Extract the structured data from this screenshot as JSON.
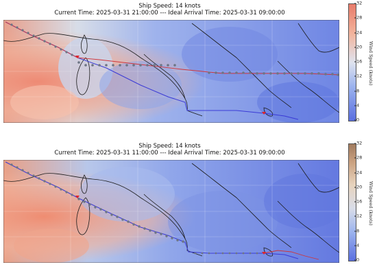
{
  "panels": [
    {
      "title_line1": "Ship Speed: 14 knots",
      "title_line2": "Current Time: 2025-03-31 21:00:00 --- Ideal Arrival Time: 2025-03-31 09:00:00",
      "colorbar": {
        "label": "Wind Speed (knots)",
        "ticks": [
          "0",
          "4",
          "8",
          "12",
          "16",
          "20",
          "24",
          "28",
          "32"
        ],
        "colormap": "coolwarm",
        "colors": [
          "#5a6fe0",
          "#9db4ee",
          "#dfe3ee",
          "#f2b39b",
          "#e87b6a"
        ]
      }
    },
    {
      "title_line1": "Ship Speed: 14 knots",
      "title_line2": "Current Time: 2025-03-31 11:00:00 --- Ideal Arrival Time: 2025-03-31 09:00:00",
      "colorbar": {
        "label": "Wind Speed (knots)",
        "ticks": [
          "0",
          "4",
          "8",
          "12",
          "16",
          "20",
          "24",
          "28",
          "32"
        ],
        "colormap": "terrain-brown",
        "colors": [
          "#5a6fe0",
          "#9db4ee",
          "#d9dde8",
          "#e7d3bd",
          "#c9a07f",
          "#a07a5e"
        ]
      }
    }
  ],
  "legend_colors": {
    "route_line": "#3a3ad6",
    "ship_marker": "#e0242a",
    "track_points": "#707786",
    "coastline": "#1b1b1b"
  }
}
